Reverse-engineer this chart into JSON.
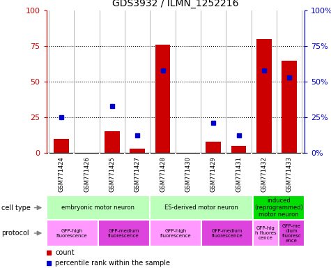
{
  "title": "GDS3932 / ILMN_1252216",
  "samples": [
    "GSM771424",
    "GSM771426",
    "GSM771425",
    "GSM771427",
    "GSM771428",
    "GSM771430",
    "GSM771429",
    "GSM771431",
    "GSM771432",
    "GSM771433"
  ],
  "counts": [
    10,
    0,
    15,
    3,
    76,
    0,
    8,
    5,
    80,
    65
  ],
  "percentiles": [
    25,
    0,
    33,
    12,
    58,
    0,
    21,
    12,
    58,
    53
  ],
  "cell_types": [
    {
      "label": "embryonic motor neuron",
      "start": 0,
      "end": 4,
      "color": "#bbffbb"
    },
    {
      "label": "ES-derived motor neuron",
      "start": 4,
      "end": 8,
      "color": "#bbffbb"
    },
    {
      "label": "induced\n(reprogrammed)\nmotor neuron",
      "start": 8,
      "end": 10,
      "color": "#00dd00"
    }
  ],
  "protocols": [
    {
      "label": "GFP-high\nfluorescence",
      "start": 0,
      "end": 2,
      "color": "#ff99ff"
    },
    {
      "label": "GFP-medium\nfluorescence",
      "start": 2,
      "end": 4,
      "color": "#dd44dd"
    },
    {
      "label": "GFP-high\nfluorescence",
      "start": 4,
      "end": 6,
      "color": "#ff99ff"
    },
    {
      "label": "GFP-medium\nfluorescence",
      "start": 6,
      "end": 8,
      "color": "#dd44dd"
    },
    {
      "label": "GFP-hig\nh fluores\ncence",
      "start": 8,
      "end": 9,
      "color": "#ff99ff"
    },
    {
      "label": "GFP-me\ndium\nfluoresc\nence",
      "start": 9,
      "end": 10,
      "color": "#dd44dd"
    }
  ],
  "bar_color": "#cc0000",
  "dot_color": "#0000cc",
  "left_axis_color": "#cc0000",
  "right_axis_color": "#0000cc",
  "ylim": [
    0,
    100
  ],
  "yticks": [
    0,
    25,
    50,
    75,
    100
  ],
  "bg_color": "#ffffff",
  "sample_bg_color": "#cccccc"
}
